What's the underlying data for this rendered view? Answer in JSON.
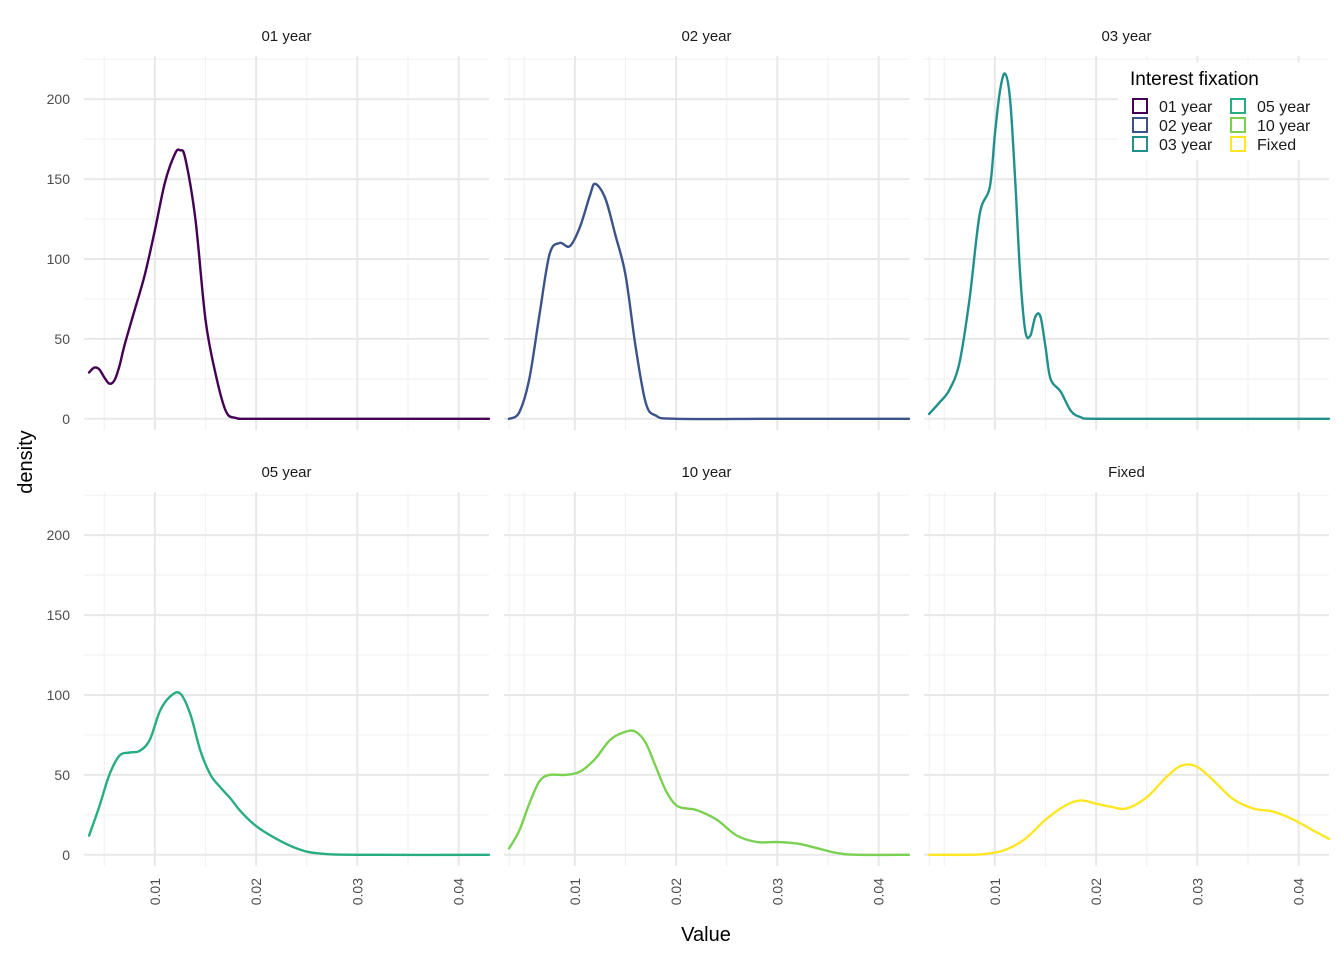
{
  "chart_data": {
    "type": "line",
    "subtype": "density",
    "facet_layout": {
      "rows": 2,
      "cols": 3
    },
    "xlabel": "Value",
    "ylabel": "density",
    "xlim": [
      0.003,
      0.043
    ],
    "ylim": [
      -7,
      227
    ],
    "x_ticks": [
      0.01,
      0.02,
      0.03,
      0.04
    ],
    "x_tick_labels": [
      "0.01",
      "0.02",
      "0.03",
      "0.04"
    ],
    "y_ticks": [
      0,
      50,
      100,
      150,
      200
    ],
    "y_tick_labels": [
      "0",
      "50",
      "100",
      "150",
      "200"
    ],
    "grid": true,
    "legend": {
      "title": "Interest fixation",
      "position": "top-right",
      "entries": [
        "01 year",
        "02 year",
        "03 year",
        "05 year",
        "10 year",
        "Fixed"
      ]
    },
    "panels": [
      {
        "title": "01 year",
        "color": "#440154",
        "points": [
          [
            0.0035,
            29
          ],
          [
            0.004,
            32
          ],
          [
            0.0045,
            31
          ],
          [
            0.005,
            26
          ],
          [
            0.0055,
            22
          ],
          [
            0.006,
            24
          ],
          [
            0.0065,
            33
          ],
          [
            0.007,
            46
          ],
          [
            0.008,
            68
          ],
          [
            0.009,
            90
          ],
          [
            0.01,
            118
          ],
          [
            0.011,
            148
          ],
          [
            0.012,
            166
          ],
          [
            0.0125,
            168
          ],
          [
            0.013,
            163
          ],
          [
            0.014,
            125
          ],
          [
            0.015,
            62
          ],
          [
            0.016,
            28
          ],
          [
            0.017,
            5
          ],
          [
            0.018,
            0.5
          ],
          [
            0.02,
            0
          ],
          [
            0.03,
            0
          ],
          [
            0.043,
            0
          ]
        ]
      },
      {
        "title": "02 year",
        "color": "#3B528B",
        "points": [
          [
            0.0035,
            0
          ],
          [
            0.0045,
            4
          ],
          [
            0.0055,
            25
          ],
          [
            0.0065,
            65
          ],
          [
            0.0075,
            103
          ],
          [
            0.0085,
            110
          ],
          [
            0.0095,
            108
          ],
          [
            0.0105,
            120
          ],
          [
            0.0115,
            140
          ],
          [
            0.012,
            147
          ],
          [
            0.013,
            138
          ],
          [
            0.014,
            115
          ],
          [
            0.015,
            90
          ],
          [
            0.016,
            45
          ],
          [
            0.017,
            10
          ],
          [
            0.018,
            2
          ],
          [
            0.02,
            0
          ],
          [
            0.03,
            0
          ],
          [
            0.043,
            0
          ]
        ]
      },
      {
        "title": "03 year",
        "color": "#21908C",
        "points": [
          [
            0.0035,
            3
          ],
          [
            0.0045,
            10
          ],
          [
            0.0055,
            18
          ],
          [
            0.0065,
            35
          ],
          [
            0.0075,
            75
          ],
          [
            0.0085,
            128
          ],
          [
            0.0095,
            145
          ],
          [
            0.01,
            178
          ],
          [
            0.0105,
            205
          ],
          [
            0.011,
            216
          ],
          [
            0.0115,
            200
          ],
          [
            0.012,
            150
          ],
          [
            0.0125,
            90
          ],
          [
            0.013,
            55
          ],
          [
            0.0135,
            52
          ],
          [
            0.014,
            64
          ],
          [
            0.0145,
            64
          ],
          [
            0.015,
            45
          ],
          [
            0.0155,
            25
          ],
          [
            0.0165,
            17
          ],
          [
            0.0175,
            5
          ],
          [
            0.0185,
            1
          ],
          [
            0.02,
            0
          ],
          [
            0.03,
            0
          ],
          [
            0.043,
            0
          ]
        ]
      },
      {
        "title": "05 year",
        "color": "#27AD81",
        "points": [
          [
            0.0035,
            12
          ],
          [
            0.0045,
            30
          ],
          [
            0.0055,
            50
          ],
          [
            0.0065,
            62
          ],
          [
            0.0075,
            64
          ],
          [
            0.0085,
            65
          ],
          [
            0.0095,
            72
          ],
          [
            0.0105,
            90
          ],
          [
            0.0115,
            99
          ],
          [
            0.0125,
            101
          ],
          [
            0.0135,
            88
          ],
          [
            0.0145,
            65
          ],
          [
            0.0155,
            50
          ],
          [
            0.0165,
            42
          ],
          [
            0.0175,
            35
          ],
          [
            0.0185,
            27
          ],
          [
            0.02,
            18
          ],
          [
            0.022,
            10
          ],
          [
            0.024,
            4
          ],
          [
            0.026,
            1
          ],
          [
            0.03,
            0
          ],
          [
            0.043,
            0
          ]
        ]
      },
      {
        "title": "10 year",
        "color": "#7AD151",
        "points": [
          [
            0.0035,
            4
          ],
          [
            0.0045,
            15
          ],
          [
            0.0055,
            32
          ],
          [
            0.0065,
            46
          ],
          [
            0.0075,
            50
          ],
          [
            0.009,
            50
          ],
          [
            0.0105,
            52
          ],
          [
            0.012,
            60
          ],
          [
            0.0135,
            72
          ],
          [
            0.015,
            77
          ],
          [
            0.016,
            77
          ],
          [
            0.017,
            70
          ],
          [
            0.018,
            55
          ],
          [
            0.019,
            40
          ],
          [
            0.02,
            31
          ],
          [
            0.021,
            29
          ],
          [
            0.022,
            28
          ],
          [
            0.024,
            22
          ],
          [
            0.026,
            12
          ],
          [
            0.028,
            8
          ],
          [
            0.03,
            8
          ],
          [
            0.032,
            7
          ],
          [
            0.034,
            4
          ],
          [
            0.036,
            1
          ],
          [
            0.038,
            0
          ],
          [
            0.043,
            0
          ]
        ]
      },
      {
        "title": "Fixed",
        "color": "#FDE725",
        "points": [
          [
            0.0035,
            0
          ],
          [
            0.005,
            0
          ],
          [
            0.007,
            0
          ],
          [
            0.009,
            0.5
          ],
          [
            0.011,
            3
          ],
          [
            0.013,
            10
          ],
          [
            0.015,
            22
          ],
          [
            0.017,
            31
          ],
          [
            0.0185,
            34
          ],
          [
            0.02,
            32
          ],
          [
            0.0215,
            30
          ],
          [
            0.023,
            29
          ],
          [
            0.025,
            36
          ],
          [
            0.027,
            49
          ],
          [
            0.0285,
            56
          ],
          [
            0.03,
            55
          ],
          [
            0.0315,
            47
          ],
          [
            0.0335,
            35
          ],
          [
            0.0355,
            29
          ],
          [
            0.0375,
            27
          ],
          [
            0.0395,
            22
          ],
          [
            0.0415,
            15
          ],
          [
            0.043,
            10
          ]
        ]
      }
    ]
  }
}
